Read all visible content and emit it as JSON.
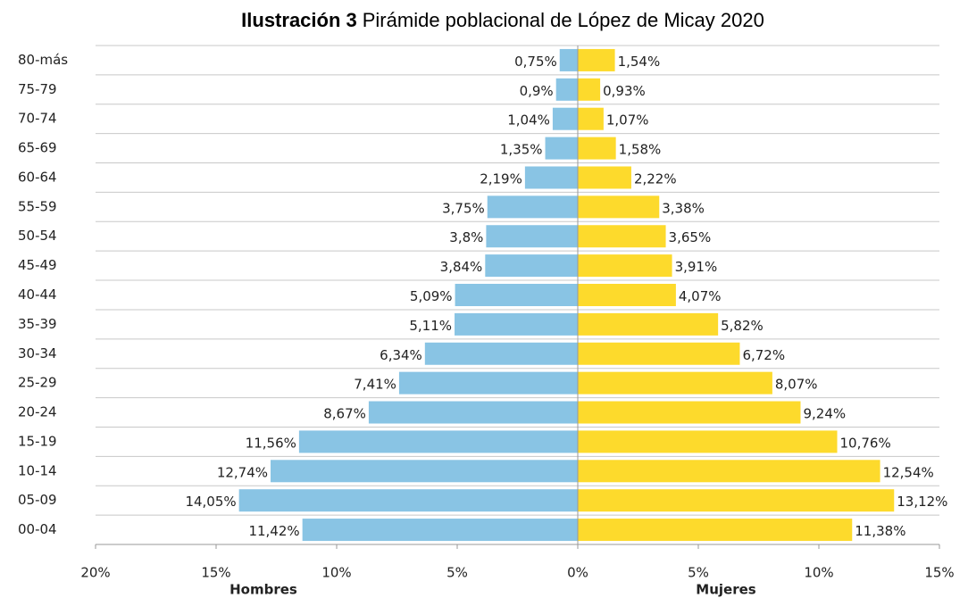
{
  "chart_data": {
    "type": "pyramid",
    "title_label": "Ilustración 3",
    "title": "Pirámide poblacional de López de Micay 2020",
    "categories": [
      "80-más",
      "75-79",
      "70-74",
      "65-69",
      "60-64",
      "55-59",
      "50-54",
      "45-49",
      "40-44",
      "35-39",
      "30-34",
      "25-29",
      "20-24",
      "15-19",
      "10-14",
      "05-09",
      "00-04"
    ],
    "series": [
      {
        "name": "Hombres",
        "color": "#89c4e4",
        "values": [
          0.75,
          0.9,
          1.04,
          1.35,
          2.19,
          3.75,
          3.8,
          3.84,
          5.09,
          5.11,
          6.34,
          7.41,
          8.67,
          11.56,
          12.74,
          14.05,
          11.42
        ],
        "value_labels": [
          "0,75%",
          "0,9%",
          "1,04%",
          "1,35%",
          "2,19%",
          "3,75%",
          "3,8%",
          "3,84%",
          "5,09%",
          "5,11%",
          "6,34%",
          "7,41%",
          "8,67%",
          "11,56%",
          "12,74%",
          "14,05%",
          "11,42%"
        ]
      },
      {
        "name": "Mujeres",
        "color": "#fdda2c",
        "values": [
          1.54,
          0.93,
          1.07,
          1.58,
          2.22,
          3.38,
          3.65,
          3.91,
          4.07,
          5.82,
          6.72,
          8.07,
          9.24,
          10.76,
          12.54,
          13.12,
          11.38
        ],
        "value_labels": [
          "1,54%",
          "0,93%",
          "1,07%",
          "1,58%",
          "2,22%",
          "3,38%",
          "3,65%",
          "3,91%",
          "4,07%",
          "5,82%",
          "6,72%",
          "8,07%",
          "9,24%",
          "10,76%",
          "12,54%",
          "13,12%",
          "11,38%"
        ]
      }
    ],
    "xlim": [
      -20,
      15
    ],
    "xticks": [
      {
        "value": -20,
        "label": "20%"
      },
      {
        "value": -15,
        "label": "15%"
      },
      {
        "value": -10,
        "label": "10%"
      },
      {
        "value": -5,
        "label": "5%"
      },
      {
        "value": 0,
        "label": "0%"
      },
      {
        "value": 5,
        "label": "5%"
      },
      {
        "value": 10,
        "label": "10%"
      },
      {
        "value": 15,
        "label": "15%"
      }
    ],
    "grid": true
  }
}
